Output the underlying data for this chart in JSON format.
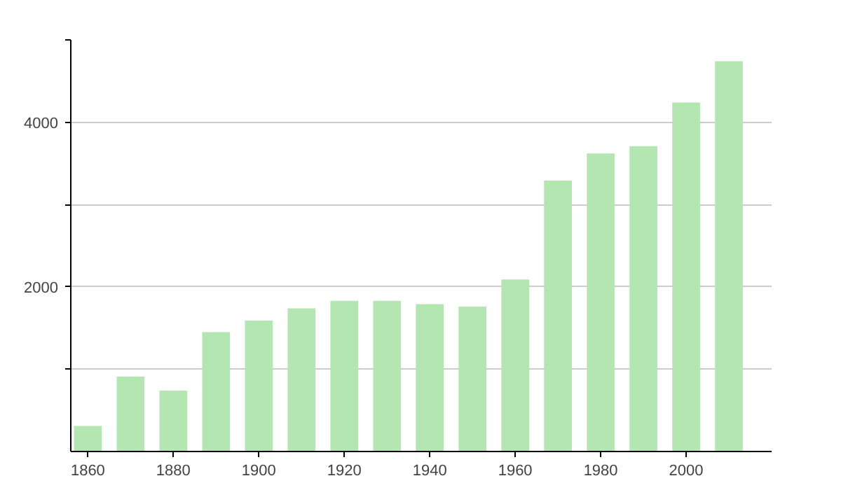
{
  "chart_data": {
    "type": "bar",
    "x": [
      1860,
      1870,
      1880,
      1890,
      1900,
      1910,
      1920,
      1930,
      1940,
      1950,
      1960,
      1970,
      1980,
      1990,
      2000,
      2010
    ],
    "values": [
      310,
      910,
      740,
      1450,
      1590,
      1740,
      1830,
      1830,
      1790,
      1760,
      2090,
      3290,
      3620,
      3710,
      4240,
      4740
    ],
    "color": "#b3e6b0",
    "xlim": [
      1856,
      2020
    ],
    "ylim": [
      0,
      5000
    ],
    "xticks": [
      1860,
      1880,
      1900,
      1920,
      1940,
      1960,
      1980,
      2000
    ],
    "yticks": [
      {
        "value": 1000,
        "label": null
      },
      2000,
      {
        "value": 3000,
        "label": null
      },
      4000,
      {
        "value": 5000,
        "label": null
      }
    ],
    "grid": "y"
  }
}
